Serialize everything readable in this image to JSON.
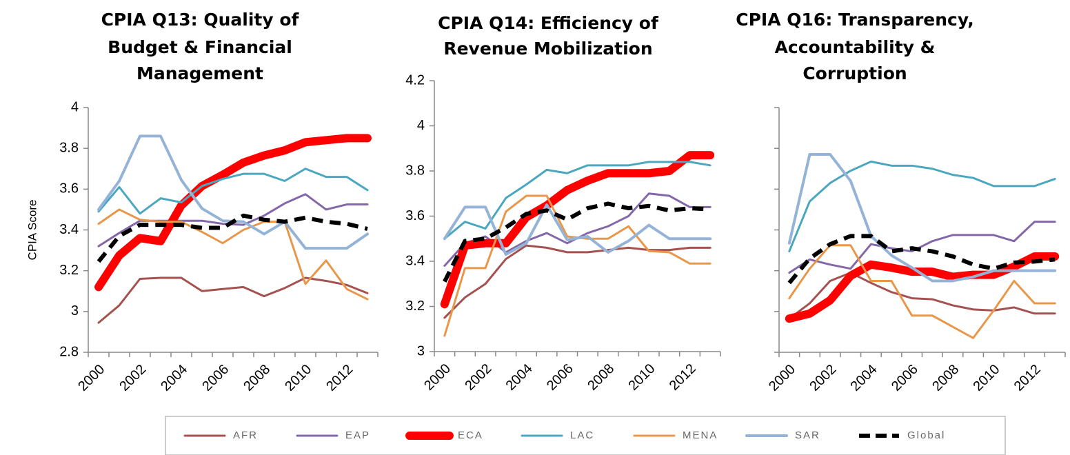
{
  "chart_data": [
    {
      "type": "line",
      "title": [
        "CPIA Q13: Quality of",
        "Budget & Financial",
        "Management"
      ],
      "y_label": "CPIA Score",
      "categories": [
        "2000",
        null,
        "2002",
        null,
        "2004",
        null,
        "2006",
        null,
        "2008",
        null,
        "2010",
        null,
        "2012",
        null
      ],
      "ylim": [
        2.8,
        4
      ],
      "yticks": [
        2.8,
        3,
        3.2,
        3.4,
        3.6,
        3.8,
        4
      ],
      "ytick_labels": true,
      "series": [
        {
          "values": [
            2.945,
            3.03,
            3.16,
            3.165,
            3.165,
            3.1,
            3.11,
            3.12,
            3.075,
            3.115,
            3.165,
            3.15,
            3.13,
            3.09
          ]
        },
        {
          "values": [
            3.32,
            3.385,
            3.445,
            3.445,
            3.445,
            3.445,
            3.43,
            3.425,
            3.47,
            3.53,
            3.575,
            3.5,
            3.525,
            3.525
          ]
        },
        {
          "values": [
            3.12,
            3.275,
            3.36,
            3.345,
            3.52,
            3.615,
            3.67,
            3.73,
            3.765,
            3.79,
            3.83,
            3.84,
            3.85,
            3.85
          ]
        },
        {
          "values": [
            3.49,
            3.61,
            3.48,
            3.555,
            3.535,
            3.615,
            3.65,
            3.675,
            3.675,
            3.64,
            3.7,
            3.66,
            3.66,
            3.595
          ]
        },
        {
          "values": [
            3.43,
            3.5,
            3.45,
            3.44,
            3.44,
            3.39,
            3.335,
            3.4,
            3.44,
            3.44,
            3.135,
            3.25,
            3.11,
            3.06
          ]
        },
        {
          "values": [
            3.5,
            3.64,
            3.86,
            3.86,
            3.645,
            3.505,
            3.445,
            3.44,
            3.38,
            3.44,
            3.31,
            3.31,
            3.31,
            3.38
          ]
        },
        {
          "values": [
            3.245,
            3.37,
            3.425,
            3.425,
            3.425,
            3.41,
            3.41,
            3.47,
            3.45,
            3.44,
            3.46,
            3.44,
            3.43,
            3.405
          ]
        }
      ]
    },
    {
      "type": "line",
      "title": [
        "CPIA Q14: Efficiency of",
        "Revenue Mobilization"
      ],
      "categories": [
        "2000",
        null,
        "2002",
        null,
        "2004",
        null,
        "2006",
        null,
        "2008",
        null,
        "2010",
        null,
        "2012",
        null
      ],
      "ylim": [
        3,
        4.2
      ],
      "yticks": [
        3,
        3.2,
        3.4,
        3.6,
        3.8,
        4,
        4.2
      ],
      "ytick_labels": true,
      "series": [
        {
          "values": [
            3.15,
            3.24,
            3.3,
            3.41,
            3.47,
            3.46,
            3.44,
            3.44,
            3.45,
            3.46,
            3.45,
            3.45,
            3.46,
            3.46
          ]
        },
        {
          "values": [
            3.38,
            3.48,
            3.51,
            3.44,
            3.49,
            3.525,
            3.48,
            3.525,
            3.555,
            3.6,
            3.7,
            3.69,
            3.64,
            3.64
          ]
        },
        {
          "values": [
            3.21,
            3.47,
            3.48,
            3.48,
            3.595,
            3.647,
            3.715,
            3.757,
            3.79,
            3.79,
            3.79,
            3.8,
            3.87,
            3.87
          ]
        },
        {
          "values": [
            3.5,
            3.575,
            3.545,
            3.68,
            3.74,
            3.805,
            3.79,
            3.825,
            3.825,
            3.825,
            3.84,
            3.84,
            3.84,
            3.825
          ]
        },
        {
          "values": [
            3.07,
            3.37,
            3.37,
            3.62,
            3.69,
            3.69,
            3.51,
            3.5,
            3.5,
            3.555,
            3.445,
            3.44,
            3.39,
            3.39
          ]
        },
        {
          "values": [
            3.5,
            3.64,
            3.64,
            3.43,
            3.48,
            3.65,
            3.495,
            3.51,
            3.44,
            3.49,
            3.56,
            3.5,
            3.5,
            3.5
          ]
        },
        {
          "values": [
            3.31,
            3.49,
            3.5,
            3.55,
            3.61,
            3.625,
            3.585,
            3.635,
            3.655,
            3.635,
            3.645,
            3.625,
            3.635,
            3.63
          ]
        }
      ]
    },
    {
      "type": "line",
      "title": [
        "CPIA Q16: Transparency,",
        "Accountability &",
        "Corruption"
      ],
      "categories": [
        "2000",
        null,
        "2002",
        null,
        "2004",
        null,
        "2006",
        null,
        "2008",
        null,
        "2010",
        null,
        "2012",
        null
      ],
      "ylim": [
        2.8,
        4
      ],
      "yticks": [
        2.8,
        3,
        3.2,
        3.4,
        3.6,
        3.8,
        4
      ],
      "ytick_labels": false,
      "series": [
        {
          "values": [
            2.965,
            3.04,
            3.15,
            3.19,
            3.14,
            3.095,
            3.065,
            3.06,
            3.03,
            3.01,
            3.005,
            3.02,
            2.99,
            2.99
          ]
        },
        {
          "values": [
            3.19,
            3.255,
            3.23,
            3.21,
            3.33,
            3.31,
            3.295,
            3.345,
            3.375,
            3.375,
            3.375,
            3.345,
            3.44,
            3.44
          ]
        },
        {
          "values": [
            2.965,
            2.99,
            3.055,
            3.175,
            3.23,
            3.215,
            3.195,
            3.195,
            3.17,
            3.18,
            3.18,
            3.22,
            3.27,
            3.27
          ]
        },
        {
          "values": [
            3.295,
            3.54,
            3.63,
            3.69,
            3.735,
            3.715,
            3.715,
            3.7,
            3.67,
            3.655,
            3.615,
            3.615,
            3.615,
            3.65
          ]
        },
        {
          "values": [
            3.065,
            3.21,
            3.325,
            3.325,
            3.15,
            3.15,
            2.98,
            2.98,
            2.925,
            2.87,
            3.005,
            3.15,
            3.04,
            3.04
          ]
        },
        {
          "values": [
            3.335,
            3.77,
            3.77,
            3.64,
            3.37,
            3.275,
            3.215,
            3.15,
            3.15,
            3.17,
            3.2,
            3.2,
            3.2,
            3.2
          ]
        },
        {
          "values": [
            3.14,
            3.26,
            3.33,
            3.37,
            3.37,
            3.295,
            3.31,
            3.295,
            3.27,
            3.23,
            3.21,
            3.24,
            3.245,
            3.255
          ]
        }
      ]
    }
  ],
  "legend": [
    {
      "name": "AFR",
      "color": "#a5514f",
      "width": 3
    },
    {
      "name": "EAP",
      "color": "#8467a8",
      "width": 3
    },
    {
      "name": "ECA",
      "color": "#ff0000",
      "width": 12
    },
    {
      "name": "LAC",
      "color": "#4aa7bf",
      "width": 3
    },
    {
      "name": "MENA",
      "color": "#e8974a",
      "width": 3
    },
    {
      "name": "SAR",
      "color": "#95b3d7",
      "width": 4
    },
    {
      "name": "Global",
      "color": "#000000",
      "width": 6,
      "dash": true
    }
  ]
}
